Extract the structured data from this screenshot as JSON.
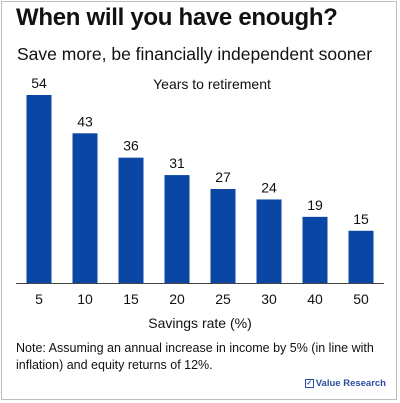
{
  "title": "When will you have enough?",
  "subtitle": "Save more, be financially independent sooner",
  "chart_data": {
    "type": "bar",
    "title": "Years to retirement",
    "xlabel": "Savings rate (%)",
    "ylabel": "",
    "categories": [
      "5",
      "10",
      "15",
      "20",
      "25",
      "30",
      "40",
      "50"
    ],
    "values": [
      54,
      43,
      36,
      31,
      27,
      24,
      19,
      15
    ],
    "ylim": [
      0,
      60
    ],
    "grid": false,
    "bar_color": "#0a47a4"
  },
  "note": "Note: Assuming an annual increase in income by 5% (in line with inflation) and equity returns of 12%.",
  "brand": "Value Research"
}
